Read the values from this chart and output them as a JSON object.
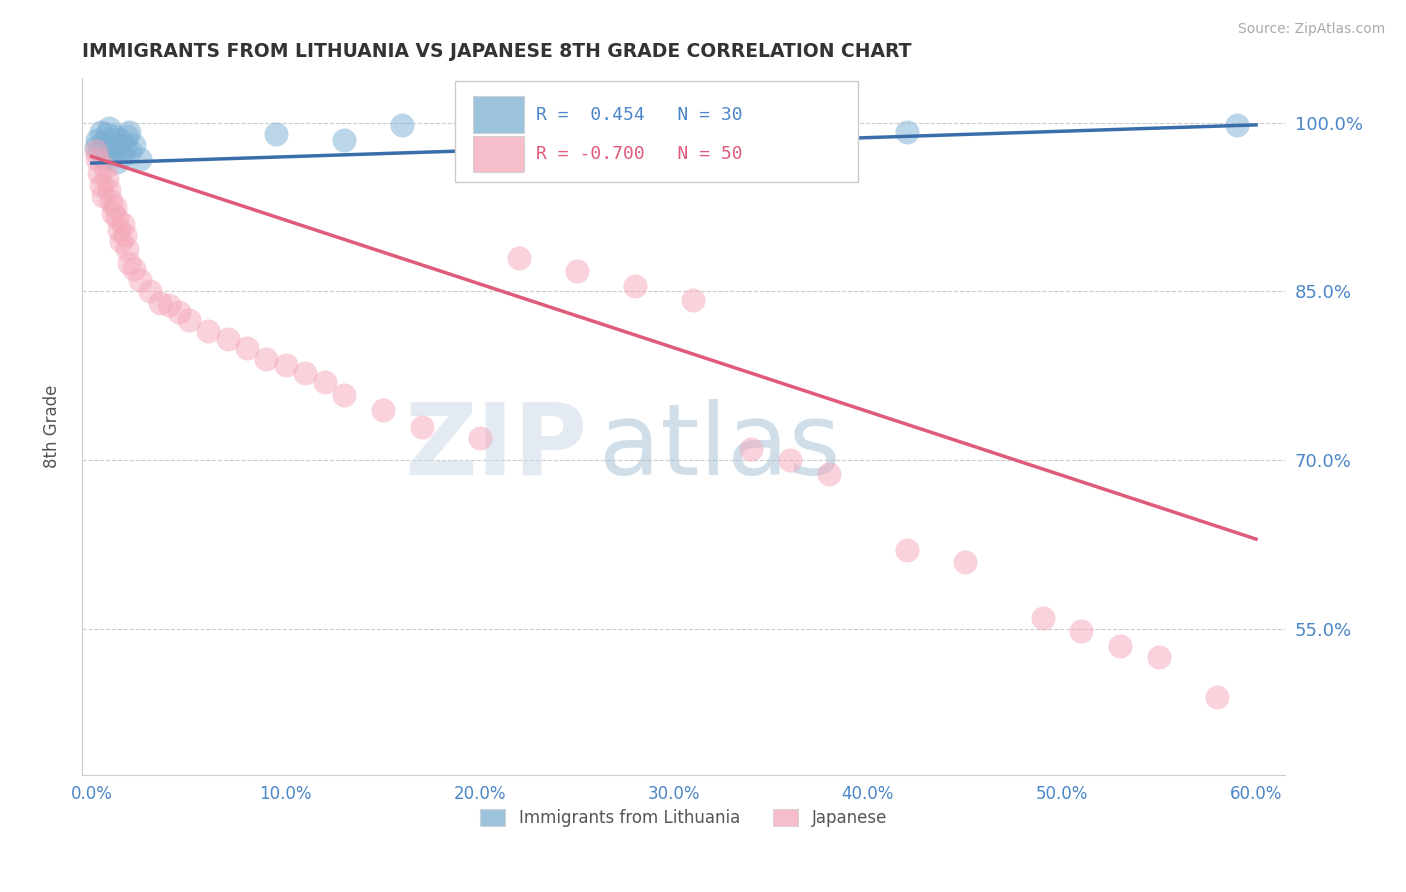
{
  "title": "IMMIGRANTS FROM LITHUANIA VS JAPANESE 8TH GRADE CORRELATION CHART",
  "source_text": "Source: ZipAtlas.com",
  "ylabel": "8th Grade",
  "xlim": [
    -0.005,
    0.615
  ],
  "ylim": [
    0.42,
    1.04
  ],
  "ytick_labels": [
    "55.0%",
    "70.0%",
    "85.0%",
    "100.0%"
  ],
  "ytick_values": [
    0.55,
    0.7,
    0.85,
    1.0
  ],
  "xtick_labels": [
    "0.0%",
    "10.0%",
    "20.0%",
    "30.0%",
    "40.0%",
    "50.0%",
    "60.0%"
  ],
  "xtick_values": [
    0.0,
    0.1,
    0.2,
    0.3,
    0.4,
    0.5,
    0.6
  ],
  "blue_scatter_x": [
    0.002,
    0.003,
    0.004,
    0.005,
    0.006,
    0.007,
    0.008,
    0.009,
    0.01,
    0.011,
    0.012,
    0.013,
    0.014,
    0.015,
    0.016,
    0.017,
    0.018,
    0.019,
    0.02,
    0.022,
    0.025,
    0.095,
    0.13,
    0.16,
    0.2,
    0.24,
    0.31,
    0.38,
    0.42,
    0.59
  ],
  "blue_scatter_y": [
    0.978,
    0.985,
    0.975,
    0.992,
    0.982,
    0.968,
    0.99,
    0.995,
    0.975,
    0.972,
    0.988,
    0.965,
    0.98,
    0.985,
    0.97,
    0.978,
    0.988,
    0.992,
    0.975,
    0.98,
    0.968,
    0.99,
    0.985,
    0.998,
    0.992,
    0.995,
    0.988,
    0.985,
    0.992,
    0.998
  ],
  "pink_scatter_x": [
    0.002,
    0.003,
    0.004,
    0.005,
    0.006,
    0.007,
    0.008,
    0.009,
    0.01,
    0.011,
    0.012,
    0.013,
    0.014,
    0.015,
    0.016,
    0.017,
    0.018,
    0.019,
    0.022,
    0.025,
    0.03,
    0.035,
    0.04,
    0.045,
    0.05,
    0.06,
    0.07,
    0.08,
    0.09,
    0.1,
    0.11,
    0.12,
    0.13,
    0.15,
    0.17,
    0.2,
    0.22,
    0.25,
    0.28,
    0.31,
    0.34,
    0.36,
    0.38,
    0.42,
    0.45,
    0.49,
    0.51,
    0.53,
    0.55,
    0.58
  ],
  "pink_scatter_y": [
    0.975,
    0.968,
    0.955,
    0.945,
    0.935,
    0.96,
    0.95,
    0.94,
    0.93,
    0.92,
    0.925,
    0.915,
    0.905,
    0.895,
    0.91,
    0.9,
    0.888,
    0.875,
    0.87,
    0.86,
    0.85,
    0.84,
    0.838,
    0.832,
    0.825,
    0.815,
    0.808,
    0.8,
    0.79,
    0.785,
    0.778,
    0.77,
    0.758,
    0.745,
    0.73,
    0.72,
    0.88,
    0.868,
    0.855,
    0.842,
    0.71,
    0.7,
    0.688,
    0.62,
    0.61,
    0.56,
    0.548,
    0.535,
    0.525,
    0.49
  ],
  "blue_line_x": [
    0.0,
    0.6
  ],
  "blue_line_y": [
    0.964,
    0.998
  ],
  "pink_line_x": [
    0.0,
    0.6
  ],
  "pink_line_y": [
    0.97,
    0.63
  ],
  "blue_color": "#7bafd4",
  "pink_color": "#f4a7b9",
  "blue_line_color": "#3a6eaa",
  "pink_line_color": "#e05a7a",
  "R_blue": 0.454,
  "N_blue": 30,
  "R_pink": -0.7,
  "N_pink": 50,
  "legend_label_blue": "Immigrants from Lithuania",
  "legend_label_pink": "Japanese",
  "watermark_zip": "ZIP",
  "watermark_atlas": "atlas",
  "title_color": "#333333",
  "axis_label_color": "#555555",
  "tick_label_color": "#4a86c8",
  "grid_color": "#cccccc",
  "background_color": "#ffffff"
}
